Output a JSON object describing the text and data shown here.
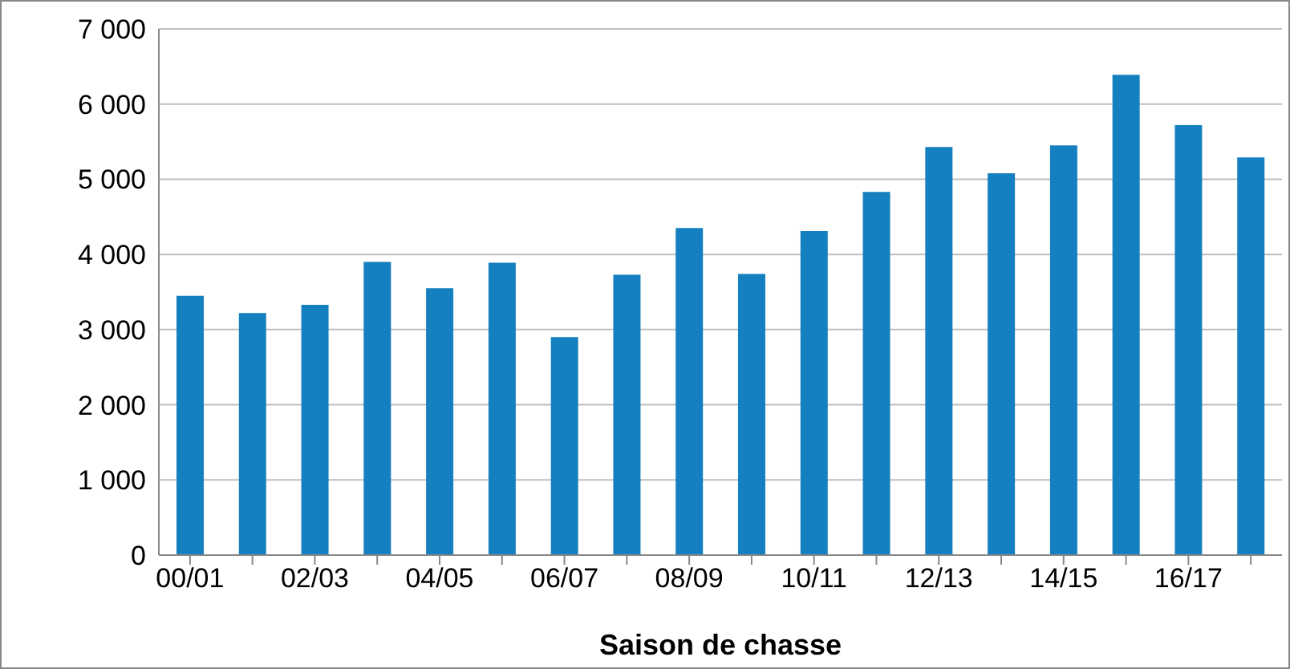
{
  "chart_data": {
    "type": "bar",
    "xlabel": "Saison de chasse",
    "categories": [
      "00/01",
      null,
      "02/03",
      null,
      "04/05",
      null,
      "06/07",
      null,
      "08/09",
      null,
      "10/11",
      null,
      "12/13",
      null,
      "14/15",
      null,
      "16/17",
      null
    ],
    "values": [
      3450,
      3220,
      3330,
      3900,
      3550,
      3890,
      2900,
      3730,
      4350,
      3740,
      4310,
      4830,
      5430,
      5080,
      5450,
      6390,
      5720,
      5290
    ],
    "color": "#1580c0",
    "ylim": [
      0,
      7000
    ],
    "yticks": [
      {
        "value": 0,
        "label": "0"
      },
      {
        "value": 1000,
        "label": "1 000"
      },
      {
        "value": 2000,
        "label": "2 000"
      },
      {
        "value": 3000,
        "label": "3 000"
      },
      {
        "value": 4000,
        "label": "4 000"
      },
      {
        "value": 5000,
        "label": "5 000"
      },
      {
        "value": 6000,
        "label": "6 000"
      },
      {
        "value": 7000,
        "label": "7 000"
      }
    ],
    "grid": "y"
  }
}
